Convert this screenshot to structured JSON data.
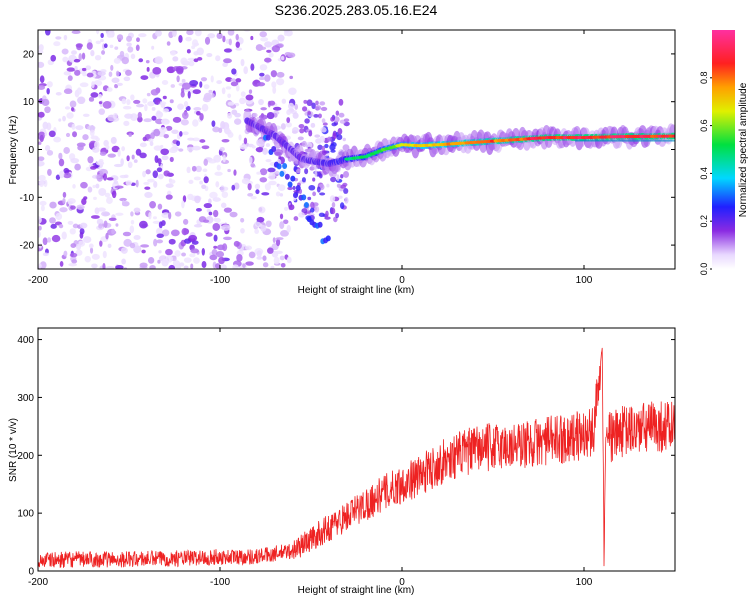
{
  "title": "S236.2025.283.05.16.E24",
  "chart_data": [
    {
      "type": "heatmap",
      "title": "S236.2025.283.05.16.E24",
      "xlabel": "Height of straight line (km)",
      "ylabel": "Frequency (Hz)",
      "xlim": [
        -200,
        150
      ],
      "ylim": [
        -25,
        25
      ],
      "x_ticks": [
        -200,
        -100,
        0,
        100
      ],
      "x_tick_labels": [
        "-200",
        "-100",
        "0",
        "100"
      ],
      "y_ticks": [
        -20,
        -10,
        0,
        10,
        20
      ],
      "y_tick_labels": [
        "-20",
        "-10",
        "0",
        "10",
        "20"
      ],
      "colorbar": {
        "label": "Normalized spectral amplitude",
        "range": [
          0,
          1
        ],
        "ticks": [
          0.0,
          0.2,
          0.4,
          0.6,
          0.8
        ],
        "tick_labels": [
          "0.0",
          "0.2",
          "0.4",
          "0.6",
          "0.8"
        ],
        "colormap": "rainbow (white-purple-blue-cyan-green-yellow-red-magenta)"
      },
      "ridge_line": {
        "description": "dominant carrier frequency ridge",
        "x": [
          -85,
          -70,
          -55,
          -40,
          -30,
          -20,
          -10,
          0,
          10,
          20,
          40,
          60,
          80,
          100,
          120,
          150
        ],
        "y": [
          6,
          3,
          -2,
          -3,
          -2,
          -1.5,
          0,
          1,
          0.8,
          1,
          1.5,
          2,
          2.5,
          2.5,
          2.7,
          2.8
        ],
        "values": [
          0.3,
          0.35,
          0.4,
          0.45,
          0.5,
          0.55,
          0.6,
          0.7,
          0.75,
          0.8,
          0.85,
          0.9,
          0.95,
          0.95,
          0.95,
          0.95
        ]
      },
      "noise_region": {
        "x_range": [
          -200,
          -60
        ],
        "y_range": [
          -25,
          25
        ],
        "level": "low (0.0–0.2)"
      }
    },
    {
      "type": "line",
      "title": "",
      "xlabel": "Height of straight line (km)",
      "ylabel": "SNR (10 * v/v)",
      "xlim": [
        -200,
        150
      ],
      "ylim": [
        0,
        420
      ],
      "x_ticks": [
        -200,
        -100,
        0,
        100
      ],
      "x_tick_labels": [
        "-200",
        "-100",
        "0",
        "100"
      ],
      "y_ticks": [
        0,
        100,
        200,
        300,
        400
      ],
      "y_tick_labels": [
        "0",
        "100",
        "200",
        "300",
        "400"
      ],
      "series": [
        {
          "name": "SNR",
          "color": "#ee2222",
          "x": [
            -200,
            -180,
            -160,
            -140,
            -120,
            -100,
            -80,
            -70,
            -60,
            -50,
            -40,
            -30,
            -20,
            -10,
            0,
            10,
            20,
            30,
            40,
            50,
            60,
            70,
            80,
            90,
            100,
            105,
            110,
            111,
            112,
            115,
            120,
            130,
            140,
            150
          ],
          "y": [
            18,
            20,
            20,
            21,
            22,
            24,
            25,
            30,
            35,
            55,
            75,
            95,
            115,
            135,
            150,
            165,
            185,
            200,
            210,
            215,
            215,
            220,
            225,
            230,
            235,
            238,
            400,
            20,
            240,
            230,
            240,
            245,
            250,
            250
          ]
        }
      ]
    }
  ]
}
